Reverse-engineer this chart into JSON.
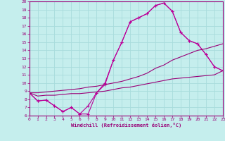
{
  "xlabel": "Windchill (Refroidissement éolien,°C)",
  "xlim": [
    0,
    23
  ],
  "ylim": [
    6,
    20
  ],
  "xticks": [
    0,
    1,
    2,
    3,
    4,
    5,
    6,
    7,
    8,
    9,
    10,
    11,
    12,
    13,
    14,
    15,
    16,
    17,
    18,
    19,
    20,
    21,
    22,
    23
  ],
  "yticks": [
    6,
    7,
    8,
    9,
    10,
    11,
    12,
    13,
    14,
    15,
    16,
    17,
    18,
    19,
    20
  ],
  "bg_color": "#c5eeed",
  "grid_color": "#a8dcdc",
  "line_color": "#990077",
  "line_color2": "#bb0099",
  "series_marked": [
    [
      8.8,
      7.8,
      7.9,
      7.2,
      6.5,
      7.0,
      6.2,
      6.2,
      8.8,
      9.8,
      12.8,
      15.0,
      17.5,
      18.0,
      18.5,
      19.5,
      19.8,
      18.8,
      16.2,
      15.2,
      14.8,
      13.5,
      12.0,
      11.5
    ],
    [
      8.8,
      7.8,
      7.9,
      7.2,
      6.5,
      7.0,
      6.2,
      7.2,
      8.8,
      10.0,
      12.8,
      15.0,
      17.5,
      18.0,
      18.5,
      19.5,
      19.8,
      18.8,
      16.2,
      15.2,
      14.8,
      13.5,
      12.0,
      11.5
    ]
  ],
  "series_plain": [
    [
      8.8,
      8.8,
      8.9,
      9.0,
      9.1,
      9.2,
      9.3,
      9.5,
      9.6,
      9.8,
      10.0,
      10.2,
      10.5,
      10.8,
      11.2,
      11.8,
      12.2,
      12.8,
      13.2,
      13.6,
      14.0,
      14.2,
      14.5,
      14.8
    ],
    [
      8.8,
      8.4,
      8.5,
      8.5,
      8.6,
      8.7,
      8.7,
      8.8,
      8.9,
      9.0,
      9.2,
      9.4,
      9.5,
      9.7,
      9.9,
      10.1,
      10.3,
      10.5,
      10.6,
      10.7,
      10.8,
      10.9,
      11.0,
      11.5
    ]
  ]
}
